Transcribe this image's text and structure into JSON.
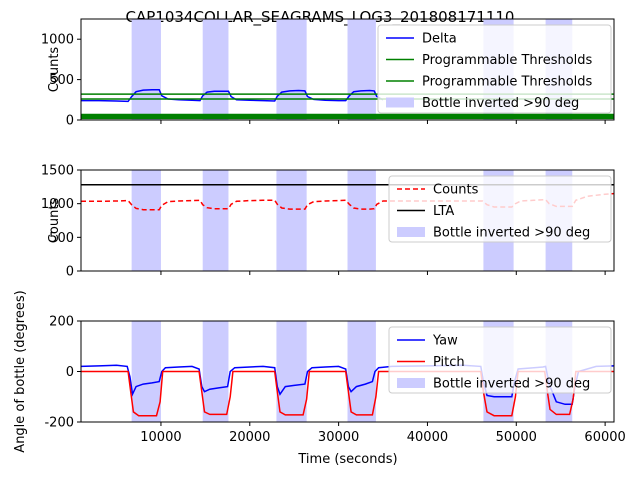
{
  "chart_data": [
    {
      "type": "line",
      "title": "CAP1034COLLAR_SEAGRAMS_LOG3_201808171110",
      "xlabel": "",
      "ylabel": "Counts",
      "xlim": [
        1000,
        61000
      ],
      "ylim": [
        0,
        1250
      ],
      "yticks": [
        0,
        500,
        1000
      ],
      "legend_position": "top-right",
      "series": [
        {
          "name": "Delta",
          "color": "#0000ff",
          "x": [
            1000,
            3000,
            5000,
            6300,
            6700,
            7200,
            8000,
            9000,
            9800,
            10100,
            10800,
            12000,
            13500,
            14400,
            14700,
            15200,
            16000,
            17000,
            17600,
            17900,
            18500,
            20000,
            21500,
            22800,
            23100,
            23600,
            24500,
            25500,
            26200,
            26500,
            27200,
            28500,
            30000,
            30800,
            31200,
            31700,
            32500,
            33500,
            34000,
            34300,
            35000
          ],
          "y": [
            240,
            240,
            235,
            230,
            290,
            350,
            370,
            375,
            375,
            300,
            260,
            250,
            245,
            240,
            300,
            345,
            355,
            355,
            355,
            290,
            250,
            245,
            240,
            235,
            295,
            345,
            360,
            365,
            360,
            290,
            255,
            245,
            240,
            240,
            300,
            350,
            360,
            365,
            360,
            290,
            250
          ]
        },
        {
          "name": "Programmable Thresholds",
          "color": "#008000",
          "x": [
            1000,
            61000
          ],
          "y": [
            320,
            320
          ]
        },
        {
          "name": "Programmable Thresholds",
          "color": "#008000",
          "x": [
            1000,
            61000
          ],
          "y": [
            260,
            260
          ]
        },
        {
          "name": "",
          "color": "#008000",
          "x": [
            1000,
            61000
          ],
          "y": [
            60,
            60
          ]
        },
        {
          "name": "",
          "color": "#008000",
          "x": [
            1000,
            61000
          ],
          "y": [
            30,
            30
          ]
        }
      ],
      "legend": [
        "Delta",
        "Programmable Thresholds",
        "Programmable Thresholds",
        "Bottle inverted >90 deg"
      ]
    },
    {
      "type": "line",
      "title": "",
      "xlabel": "",
      "ylabel": "Counts",
      "xlim": [
        1000,
        61000
      ],
      "ylim": [
        0,
        1500
      ],
      "yticks": [
        0,
        500,
        1000,
        1500
      ],
      "legend_position": "top-right",
      "series": [
        {
          "name": "Counts",
          "color": "#ff0000",
          "dashed": true,
          "x": [
            1000,
            3000,
            5000,
            6300,
            6700,
            7200,
            8000,
            9000,
            9800,
            10100,
            10800,
            12000,
            13500,
            14400,
            14700,
            15200,
            16000,
            17000,
            17600,
            17900,
            18500,
            20000,
            21500,
            22800,
            23100,
            23600,
            24500,
            25500,
            26200,
            26500,
            27200,
            28500,
            30000,
            30800,
            31200,
            31700,
            32500,
            33500,
            34000,
            34300,
            35000,
            38000,
            41000,
            44000,
            46200,
            46700,
            47500,
            48500,
            49500,
            49900,
            50500,
            52000,
            53300,
            53700,
            54500,
            55500,
            56300,
            56700,
            58000,
            60000,
            61000
          ],
          "y": [
            1035,
            1035,
            1040,
            1045,
            985,
            930,
            910,
            910,
            910,
            975,
            1030,
            1040,
            1045,
            1050,
            985,
            940,
            925,
            925,
            925,
            990,
            1035,
            1045,
            1050,
            1050,
            990,
            935,
            920,
            920,
            920,
            985,
            1030,
            1040,
            1045,
            1050,
            990,
            935,
            920,
            920,
            925,
            990,
            1040,
            1040,
            1040,
            1040,
            1040,
            985,
            950,
            950,
            950,
            1000,
            1040,
            1050,
            1060,
            1000,
            960,
            960,
            960,
            1050,
            1110,
            1140,
            1150
          ]
        },
        {
          "name": "LTA",
          "color": "#000000",
          "x": [
            1000,
            61000
          ],
          "y": [
            1280,
            1280
          ]
        }
      ],
      "legend": [
        "Counts",
        "LTA",
        "Bottle inverted >90 deg"
      ]
    },
    {
      "type": "line",
      "title": "",
      "xlabel": "Time (seconds)",
      "ylabel": "Angle of bottle (degrees)",
      "xlim": [
        1000,
        61000
      ],
      "ylim": [
        -200,
        200
      ],
      "yticks": [
        -200,
        0,
        200
      ],
      "xticks": [
        10000,
        20000,
        30000,
        40000,
        50000,
        60000
      ],
      "legend_position": "top-right",
      "series": [
        {
          "name": "Yaw",
          "color": "#0000ff",
          "x": [
            1000,
            3000,
            5000,
            6200,
            6500,
            6800,
            7200,
            8000,
            9000,
            9800,
            10100,
            10500,
            12000,
            13500,
            14300,
            14600,
            14900,
            15500,
            16500,
            17500,
            17800,
            18300,
            20000,
            21500,
            22800,
            23100,
            23400,
            24000,
            25000,
            26200,
            26500,
            27000,
            28500,
            30000,
            30800,
            31100,
            31400,
            32000,
            33000,
            33800,
            34100,
            34500,
            36000,
            40000,
            44000,
            46000,
            46300,
            46700,
            47500,
            48500,
            49500,
            49800,
            50200,
            52000,
            53000,
            53300,
            53700,
            54500,
            55500,
            56300,
            56600,
            57000,
            59000,
            61000
          ],
          "y": [
            20,
            22,
            25,
            20,
            -20,
            -90,
            -60,
            -50,
            -45,
            -40,
            0,
            15,
            18,
            20,
            10,
            -60,
            -80,
            -70,
            -65,
            -60,
            0,
            15,
            18,
            20,
            15,
            -60,
            -90,
            -60,
            -55,
            -50,
            0,
            15,
            18,
            20,
            10,
            -60,
            -80,
            -60,
            -50,
            -40,
            0,
            15,
            20,
            22,
            25,
            20,
            -40,
            -95,
            -100,
            -100,
            -100,
            -40,
            10,
            15,
            18,
            20,
            -50,
            -120,
            -130,
            -130,
            -60,
            0,
            20,
            22
          ]
        },
        {
          "name": "Pitch",
          "color": "#ff0000",
          "x": [
            1000,
            6300,
            6600,
            6900,
            7500,
            9500,
            9900,
            10200,
            14300,
            14600,
            14900,
            15500,
            17400,
            17800,
            18100,
            22800,
            23100,
            23400,
            24000,
            26000,
            26400,
            26700,
            30800,
            31100,
            31400,
            32000,
            33800,
            34200,
            34500,
            46000,
            46300,
            46700,
            47500,
            49500,
            49900,
            50200,
            53200,
            53500,
            53800,
            54500,
            56000,
            56400,
            56700,
            61000
          ],
          "y": [
            0,
            0,
            -80,
            -160,
            -175,
            -175,
            -120,
            0,
            0,
            -80,
            -160,
            -170,
            -170,
            -100,
            0,
            0,
            -80,
            -160,
            -172,
            -172,
            -110,
            0,
            0,
            -80,
            -160,
            -172,
            -172,
            -100,
            0,
            0,
            -80,
            -160,
            -175,
            -175,
            -100,
            0,
            0,
            -80,
            -150,
            -170,
            -170,
            -110,
            0,
            0
          ]
        }
      ],
      "legend": [
        "Yaw",
        "Pitch",
        "Bottle inverted >90 deg"
      ]
    }
  ],
  "inverted_spans": [
    [
      6700,
      10000
    ],
    [
      14700,
      17600
    ],
    [
      23000,
      26400
    ],
    [
      31000,
      34200
    ],
    [
      46300,
      49700
    ],
    [
      53300,
      56300
    ]
  ],
  "shade_color": "#ccccff",
  "axis_color": "#000000"
}
